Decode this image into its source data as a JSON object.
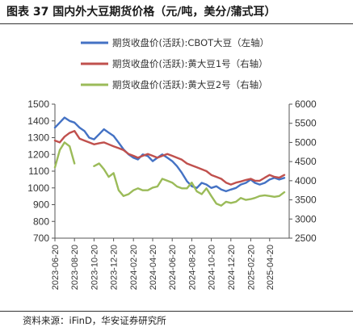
{
  "header": {
    "title": "图表 37 国内外大豆期货价格（元/吨，美分/蒲式耳）"
  },
  "footer": {
    "source": "资料来源：iFinD，华安证券研究所"
  },
  "chart_data": {
    "type": "line",
    "legend_placement": "top-center",
    "grid": false,
    "left_axis": {
      "min": 700,
      "max": 1500,
      "ticks": [
        700,
        800,
        900,
        1000,
        1100,
        1200,
        1300,
        1400,
        1500
      ]
    },
    "right_axis": {
      "min": 2500,
      "max": 6000,
      "ticks": [
        2500,
        3000,
        3500,
        4000,
        4500,
        5000,
        5500,
        6000
      ]
    },
    "x_tick_labels": [
      "2023-06-20",
      "2023-08-20",
      "2023-10-20",
      "2023-12-20",
      "2024-02-20",
      "2024-04-20",
      "2024-06-20",
      "2024-08-20",
      "2024-10-20",
      "2024-12-20",
      "2025-02-20",
      "2025-04-20"
    ],
    "x": [
      "2023-06-20",
      "2023-07-05",
      "2023-07-20",
      "2023-08-05",
      "2023-08-20",
      "2023-09-05",
      "2023-09-20",
      "2023-10-05",
      "2023-10-20",
      "2023-11-05",
      "2023-11-20",
      "2023-12-05",
      "2023-12-20",
      "2024-01-05",
      "2024-01-20",
      "2024-02-05",
      "2024-02-20",
      "2024-03-05",
      "2024-03-20",
      "2024-04-05",
      "2024-04-20",
      "2024-05-05",
      "2024-05-20",
      "2024-06-05",
      "2024-06-20",
      "2024-07-05",
      "2024-07-20",
      "2024-08-05",
      "2024-08-20",
      "2024-09-05",
      "2024-09-20",
      "2024-10-05",
      "2024-10-20",
      "2024-11-05",
      "2024-11-20",
      "2024-12-05",
      "2024-12-20",
      "2025-01-05",
      "2025-01-20",
      "2025-02-05",
      "2025-02-20",
      "2025-03-05",
      "2025-03-20",
      "2025-04-05",
      "2025-04-20",
      "2025-05-05",
      "2025-05-20",
      "2025-06-05"
    ],
    "series": [
      {
        "name": "期货收盘价(活跃):CBOT大豆（左轴）",
        "axis": "left",
        "color": "#4472C4",
        "values": [
          1360,
          1390,
          1420,
          1400,
          1390,
          1360,
          1340,
          1300,
          1290,
          1320,
          1350,
          1330,
          1310,
          1270,
          1230,
          1200,
          1180,
          1170,
          1200,
          1190,
          1160,
          1180,
          1200,
          1180,
          1160,
          1130,
          1090,
          1040,
          1010,
          1000,
          1030,
          1020,
          1000,
          1010,
          990,
          980,
          990,
          1000,
          1020,
          1030,
          1050,
          1030,
          1020,
          1030,
          1050,
          1060,
          1050,
          1060
        ]
      },
      {
        "name": "期货收盘价(活跃):黄大豆1号（右轴）",
        "axis": "right",
        "color": "#C0504D",
        "values": [
          5050,
          5000,
          5150,
          5250,
          5300,
          5100,
          5050,
          5000,
          4950,
          4980,
          5000,
          4950,
          4900,
          4850,
          4800,
          4700,
          4650,
          4600,
          4650,
          4700,
          4650,
          4600,
          4650,
          4700,
          4650,
          4600,
          4550,
          4450,
          4400,
          4350,
          4300,
          4250,
          4150,
          4100,
          4050,
          3950,
          3900,
          3950,
          3980,
          4020,
          4050,
          4000,
          4000,
          4080,
          4150,
          4100,
          4080,
          4150
        ]
      },
      {
        "name": "期货收盘价(活跃):黄大豆2号（右轴）",
        "axis": "right",
        "color": "#9BBB59",
        "values": [
          4350,
          4800,
          5000,
          4900,
          4450,
          null,
          null,
          null,
          4380,
          4450,
          4300,
          4100,
          4200,
          3750,
          3600,
          3650,
          3750,
          3800,
          3750,
          3750,
          3820,
          3850,
          4050,
          4000,
          3950,
          3850,
          3800,
          3800,
          3950,
          3720,
          3650,
          3800,
          3600,
          3400,
          3350,
          3450,
          3420,
          3450,
          3550,
          3500,
          3520,
          3550,
          3600,
          3620,
          3600,
          3580,
          3600,
          3700
        ]
      }
    ]
  }
}
